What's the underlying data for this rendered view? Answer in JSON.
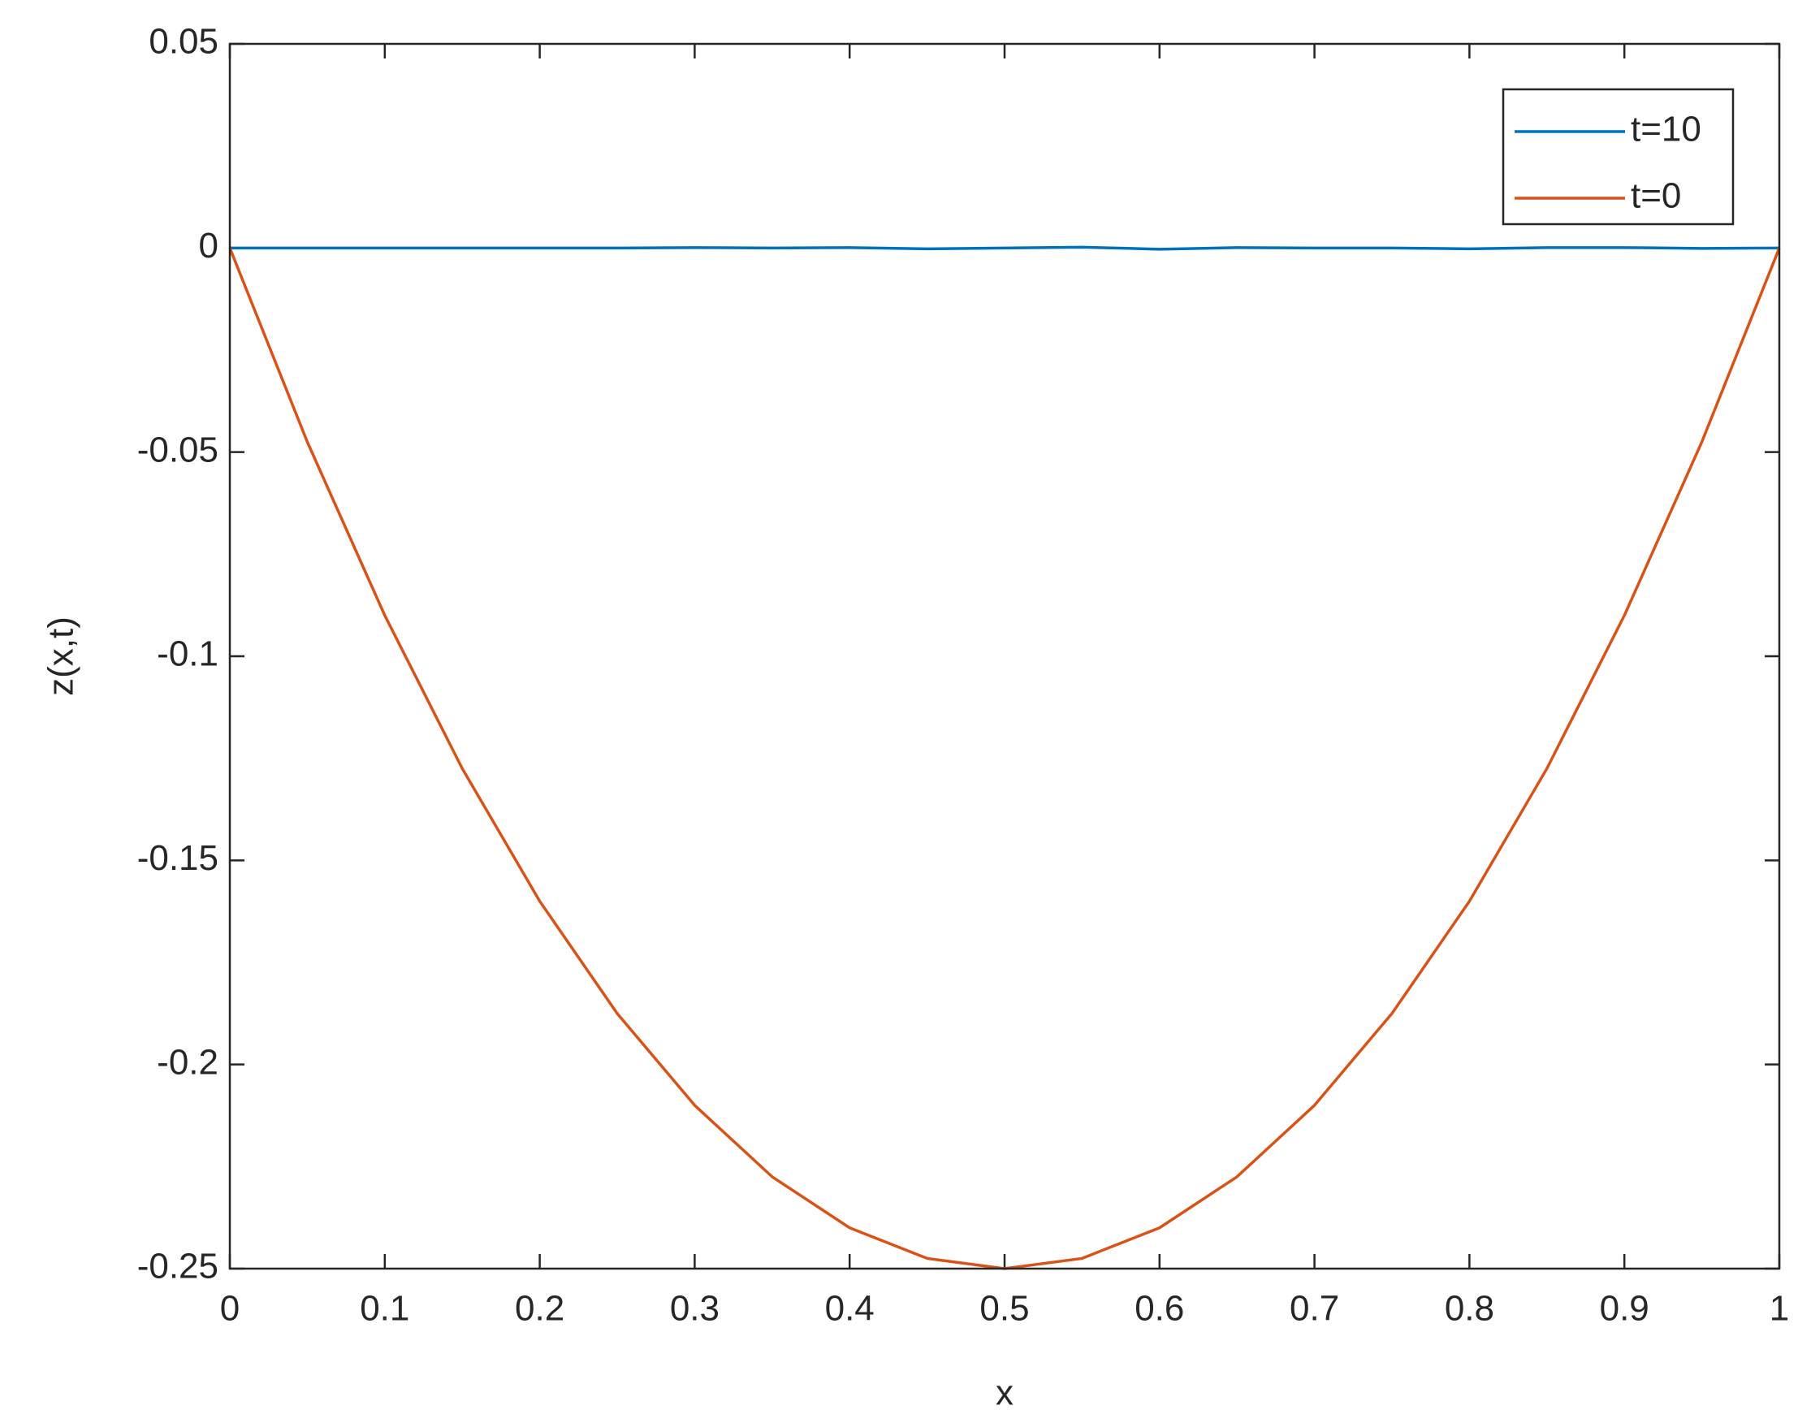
{
  "chart_data": {
    "type": "line",
    "xlabel": "x",
    "ylabel": "z(x,t)",
    "x": [
      0,
      0.05,
      0.1,
      0.15,
      0.2,
      0.25,
      0.3,
      0.35,
      0.4,
      0.45,
      0.5,
      0.55,
      0.6,
      0.65,
      0.7,
      0.75,
      0.8,
      0.85,
      0.9,
      0.95,
      1
    ],
    "series": [
      {
        "name": "t=10",
        "color": "#0072bd",
        "values": [
          0,
          0,
          0,
          0,
          0,
          0,
          0.0001,
          0,
          0.0001,
          -0.0002,
          0,
          0.0002,
          -0.0003,
          0.0001,
          0,
          0,
          -0.0002,
          0.0001,
          0.0001,
          -0.0001,
          0
        ]
      },
      {
        "name": "t=0",
        "color": "#d95319",
        "values": [
          0,
          -0.0475,
          -0.09,
          -0.1275,
          -0.16,
          -0.1875,
          -0.21,
          -0.2275,
          -0.24,
          -0.2475,
          -0.25,
          -0.2475,
          -0.24,
          -0.2275,
          -0.21,
          -0.1875,
          -0.16,
          -0.1275,
          -0.09,
          -0.0475,
          0
        ]
      }
    ],
    "xlim": [
      0,
      1
    ],
    "xticks": [
      0,
      0.1,
      0.2,
      0.3,
      0.4,
      0.5,
      0.6,
      0.7,
      0.8,
      0.9,
      1
    ],
    "ylim": [
      -0.25,
      0.05
    ],
    "yticks": [
      -0.25,
      -0.2,
      -0.15,
      -0.1,
      -0.05,
      0,
      0.05
    ],
    "legend": "top-right",
    "grid": false
  }
}
